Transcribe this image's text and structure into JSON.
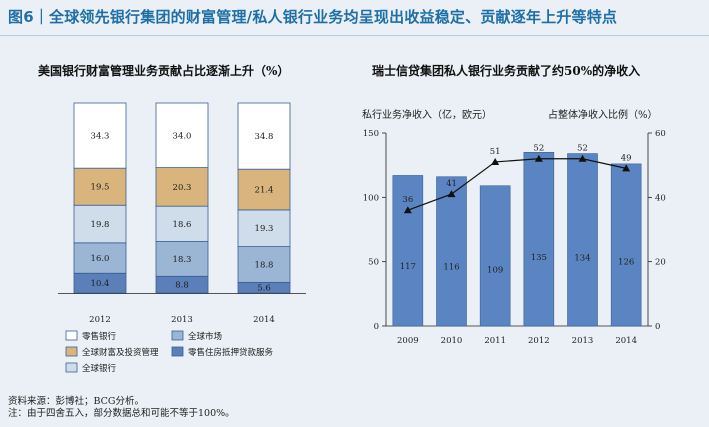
{
  "figure_title": "图6｜全球领先银行集团的财富管理/私人银行业务均呈现出收益稳定、贡献逐年上升等特点",
  "source": {
    "line1": "资料来源：彭博社；BCG分析。",
    "line2": "注：由于四舍五入，部分数据总和可能不等于100%。"
  },
  "colors": {
    "retail": "#ffffff",
    "wealth": "#d9b47c",
    "global_bank": "#cfdcea",
    "global_market": "#9bb5d5",
    "mortgage": "#5b7fb8",
    "bar": "#5b85c2",
    "line": "#111111"
  },
  "chart_data": [
    {
      "type": "bar",
      "stacked": true,
      "percent": true,
      "title": "美国银行财富管理业务贡献占比逐渐上升（%）",
      "categories": [
        "2012",
        "2013",
        "2014"
      ],
      "series": [
        {
          "key": "mortgage",
          "name": "零售住房抵押贷款服务",
          "values": [
            10.4,
            8.8,
            5.6
          ]
        },
        {
          "key": "global_market",
          "name": "全球市场",
          "values": [
            16.0,
            18.3,
            18.8
          ]
        },
        {
          "key": "global_bank",
          "name": "全球银行",
          "values": [
            19.8,
            18.6,
            19.3
          ]
        },
        {
          "key": "wealth",
          "name": "全球财富及投资管理",
          "values": [
            19.5,
            20.3,
            21.4
          ]
        },
        {
          "key": "retail",
          "name": "零售银行",
          "values": [
            34.3,
            34.0,
            34.8
          ]
        }
      ],
      "value_labels": [
        [
          "10.4",
          "8.8",
          "5.6"
        ],
        [
          "16.0",
          "18.3",
          "18.8"
        ],
        [
          "19.8",
          "18.6",
          "19.3"
        ],
        [
          "19.5",
          "20.3",
          "21.4"
        ],
        [
          "34.3",
          "34.0",
          "34.8"
        ]
      ],
      "legend": [
        {
          "key": "retail",
          "label": "零售银行"
        },
        {
          "key": "global_market",
          "label": "全球市场"
        },
        {
          "key": "wealth",
          "label": "全球财富及投资管理"
        },
        {
          "key": "mortgage",
          "label": "零售住房抵押贷款服务"
        },
        {
          "key": "global_bank",
          "label": "全球银行"
        }
      ]
    },
    {
      "type": "bar",
      "title": "瑞士信贷集团私人银行业务贡献了约50%的净收入",
      "ylabel": "私行业务净收入（亿，欧元）",
      "y2label": "占整体净收入比例（%）",
      "categories": [
        "2009",
        "2010",
        "2011",
        "2012",
        "2013",
        "2014"
      ],
      "ylim": [
        0,
        150
      ],
      "yticks": [
        0,
        50,
        100,
        150
      ],
      "y2lim": [
        0,
        60
      ],
      "y2ticks": [
        0,
        20,
        40,
        60
      ],
      "series": [
        {
          "name": "私行业务净收入",
          "type": "bar",
          "values": [
            117,
            116,
            109,
            135,
            134,
            126
          ]
        },
        {
          "name": "占整体净收入比例",
          "type": "line",
          "axis": "right",
          "values": [
            36,
            41,
            51,
            52,
            52,
            49
          ]
        }
      ],
      "line_labels": [
        "36",
        "41",
        "51",
        "52",
        "52",
        "49"
      ]
    }
  ]
}
